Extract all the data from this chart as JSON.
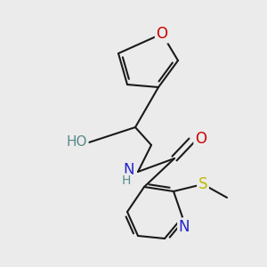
{
  "background_color": "#ebebeb",
  "bond_color": "#1a1a1a",
  "figsize": [
    3.0,
    3.0
  ],
  "dpi": 100,
  "atom_colors": {
    "O": "#cc0000",
    "N": "#2222cc",
    "S": "#bbbb00",
    "H_label": "#5a8a8a",
    "C": "#1a1a1a"
  }
}
